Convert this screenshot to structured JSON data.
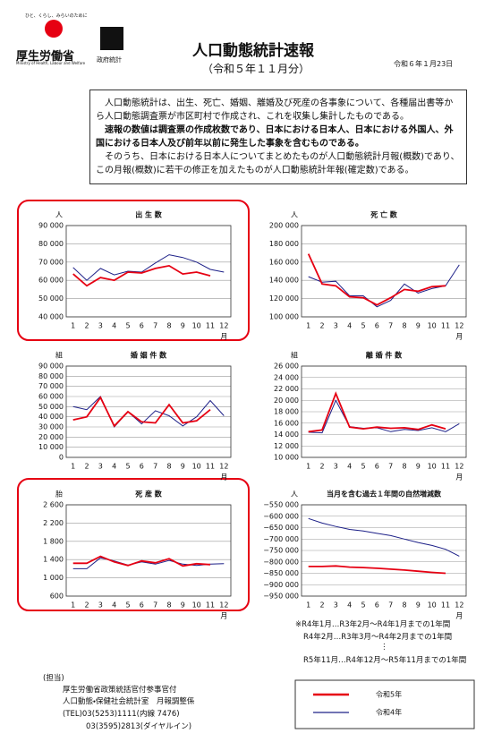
{
  "header": {
    "tagline": "ひと、くらし、みらいのために",
    "ministry": "厚生労働省",
    "ministry_en": "Ministry of Health, Labour and Welfare",
    "stats_logo": "政府統計",
    "title": "人口動態統計速報",
    "subtitle": "（令和５年１１月分）",
    "date": "令和６年１月23日"
  },
  "intro": [
    "人口動態統計は、出生、死亡、婚姻、離婚及び死産の各事象について、各種届出書等から人口動態調査票が市区町村で作成され、これを収集し集計したものである。",
    "速報の数値は調査票の作成枚数であり、日本における日本人、日本における外国人、外国における日本人及び前年以前に発生した事象を含むものである。",
    "そのうち、日本における日本人についてまとめたものが人口動態統計月報(概数)であり、この月報(概数)に若干の修正を加えたものが人口動態統計年報(確定数)である。"
  ],
  "legend": [
    {
      "name": "令和5年",
      "color": "#e60012"
    },
    {
      "name": "令和4年",
      "color": "#1d2088"
    }
  ],
  "chart_data": [
    {
      "type": "line",
      "title": "出 生 数",
      "y_unit": "人",
      "x_label": "月",
      "categories": [
        "1",
        "2",
        "3",
        "4",
        "5",
        "6",
        "7",
        "8",
        "9",
        "10",
        "11",
        "12"
      ],
      "series": [
        {
          "values": [
            63500,
            57000,
            61500,
            60000,
            64500,
            64000,
            66500,
            68000,
            63500,
            64500,
            62500,
            null
          ]
        },
        {
          "values": [
            67000,
            60000,
            66500,
            63000,
            65000,
            64500,
            69500,
            74000,
            72500,
            70000,
            66000,
            64500
          ]
        }
      ],
      "ylim": [
        40000,
        90000
      ],
      "yticks": [
        {
          "value": 40000,
          "label": "40 000"
        },
        {
          "value": 50000,
          "label": "50 000"
        },
        {
          "value": 60000,
          "label": "60 000"
        },
        {
          "value": 70000,
          "label": "70 000"
        },
        {
          "value": 80000,
          "label": "80 000"
        },
        {
          "value": 90000,
          "label": "90 000"
        }
      ],
      "grid": true
    },
    {
      "type": "line",
      "title": "死 亡 数",
      "y_unit": "人",
      "x_label": "月",
      "categories": [
        "1",
        "2",
        "3",
        "4",
        "5",
        "6",
        "7",
        "8",
        "9",
        "10",
        "11",
        "12"
      ],
      "series": [
        {
          "values": [
            169000,
            136000,
            134000,
            122000,
            121000,
            113000,
            121000,
            130000,
            128000,
            133000,
            134000,
            null
          ]
        },
        {
          "values": [
            144000,
            138000,
            139000,
            123000,
            123000,
            111000,
            118000,
            136000,
            126000,
            131000,
            134000,
            157000
          ]
        }
      ],
      "ylim": [
        100000,
        200000
      ],
      "yticks": [
        {
          "value": 100000,
          "label": "100 000"
        },
        {
          "value": 120000,
          "label": "120 000"
        },
        {
          "value": 140000,
          "label": "140 000"
        },
        {
          "value": 160000,
          "label": "160 000"
        },
        {
          "value": 180000,
          "label": "180 000"
        },
        {
          "value": 200000,
          "label": "200 000"
        }
      ],
      "grid": true
    },
    {
      "type": "line",
      "title": "婚 姻 件 数",
      "y_unit": "組",
      "x_label": "月",
      "categories": [
        "1",
        "2",
        "3",
        "4",
        "5",
        "6",
        "7",
        "8",
        "9",
        "10",
        "11",
        "12"
      ],
      "series": [
        {
          "values": [
            37000,
            40000,
            59000,
            31000,
            45000,
            35000,
            34000,
            52000,
            34000,
            36000,
            47000,
            null
          ]
        },
        {
          "values": [
            50000,
            47000,
            60000,
            30000,
            45000,
            33000,
            46000,
            41000,
            31000,
            40000,
            56000,
            41000
          ]
        }
      ],
      "ylim": [
        0,
        90000
      ],
      "yticks": [
        0,
        {
          "value": 10000,
          "label": "10 000"
        },
        {
          "value": 20000,
          "label": "20 000"
        },
        {
          "value": 30000,
          "label": "30 000"
        },
        {
          "value": 40000,
          "label": "40 000"
        },
        {
          "value": 50000,
          "label": "50 000"
        },
        {
          "value": 60000,
          "label": "60 000"
        },
        {
          "value": 70000,
          "label": "70 000"
        },
        {
          "value": 80000,
          "label": "80 000"
        },
        {
          "value": 90000,
          "label": "90 000"
        }
      ],
      "grid": true
    },
    {
      "type": "line",
      "title": "離 婚 件 数",
      "y_unit": "組",
      "x_label": "月",
      "categories": [
        "1",
        "2",
        "3",
        "4",
        "5",
        "6",
        "7",
        "8",
        "9",
        "10",
        "11",
        "12"
      ],
      "series": [
        {
          "values": [
            14500,
            14800,
            21200,
            15300,
            15000,
            15300,
            15100,
            15200,
            14900,
            15700,
            15000,
            null
          ]
        },
        {
          "values": [
            14400,
            14300,
            20000,
            15400,
            15100,
            15200,
            14500,
            14900,
            14700,
            15200,
            14500,
            15900
          ]
        }
      ],
      "ylim": [
        10000,
        26000
      ],
      "yticks": [
        {
          "value": 10000,
          "label": "10 000"
        },
        {
          "value": 12000,
          "label": "12 000"
        },
        {
          "value": 14000,
          "label": "14 000"
        },
        {
          "value": 16000,
          "label": "16 000"
        },
        {
          "value": 18000,
          "label": "18 000"
        },
        {
          "value": 20000,
          "label": "20 000"
        },
        {
          "value": 22000,
          "label": "22 000"
        },
        {
          "value": 24000,
          "label": "24 000"
        },
        {
          "value": 26000,
          "label": "26 000"
        }
      ],
      "grid": true
    },
    {
      "type": "line",
      "title": "死 産 数",
      "y_unit": "胎",
      "x_label": "月",
      "categories": [
        "1",
        "2",
        "3",
        "4",
        "5",
        "6",
        "7",
        "8",
        "9",
        "10",
        "11",
        "12"
      ],
      "series": [
        {
          "values": [
            1320,
            1320,
            1470,
            1350,
            1270,
            1370,
            1330,
            1420,
            1260,
            1310,
            1290,
            null
          ]
        },
        {
          "values": [
            1200,
            1200,
            1440,
            1370,
            1280,
            1350,
            1300,
            1380,
            1300,
            1270,
            1300,
            1310
          ]
        }
      ],
      "ylim": [
        600,
        2600
      ],
      "yticks": [
        600,
        {
          "value": 1000,
          "label": "1 000"
        },
        {
          "value": 1400,
          "label": "1 400"
        },
        {
          "value": 1800,
          "label": "1 800"
        },
        {
          "value": 2200,
          "label": "2 200"
        },
        {
          "value": 2600,
          "label": "2 600"
        }
      ],
      "grid": true
    },
    {
      "type": "line",
      "title": "当月を含む過去１年間の自然増減数",
      "y_unit": "人",
      "x_label": "月",
      "categories": [
        "1",
        "2",
        "3",
        "4",
        "5",
        "6",
        "7",
        "8",
        "9",
        "10",
        "11",
        "12"
      ],
      "series": [
        {
          "values": [
            -820000,
            -820000,
            -818000,
            -823000,
            -825000,
            -828000,
            -832000,
            -836000,
            -841000,
            -846000,
            -850000,
            null
          ]
        },
        {
          "values": [
            -610000,
            -630000,
            -645000,
            -658000,
            -665000,
            -675000,
            -685000,
            -700000,
            -715000,
            -728000,
            -745000,
            -775000
          ]
        }
      ],
      "ylim": [
        -950000,
        -550000
      ],
      "yticks": [
        {
          "value": -950000,
          "label": "−950 000"
        },
        {
          "value": -900000,
          "label": "−900 000"
        },
        {
          "value": -850000,
          "label": "−850 000"
        },
        {
          "value": -800000,
          "label": "−800 000"
        },
        {
          "value": -750000,
          "label": "−750 000"
        },
        {
          "value": -700000,
          "label": "−700 000"
        },
        {
          "value": -650000,
          "label": "−650 000"
        },
        {
          "value": -600000,
          "label": "−600 000"
        },
        {
          "value": -550000,
          "label": "−550 000"
        }
      ],
      "grid": true
    }
  ],
  "notes": [
    "※R4年1月…R3年2月～R4年1月までの1年間",
    "R4年2月…R3年3月～R4年2月までの1年間",
    "⋮",
    "R5年11月…R4年12月～R5年11月までの1年間"
  ],
  "contact": [
    "(担当)",
    "厚生労働省政策統括官付参事官付",
    "人口動態・保健社会統計室　月報調整係",
    "(TEL)03(5253)1111(内線 7476)",
    "03(3595)2813(ダイヤルイン)"
  ]
}
